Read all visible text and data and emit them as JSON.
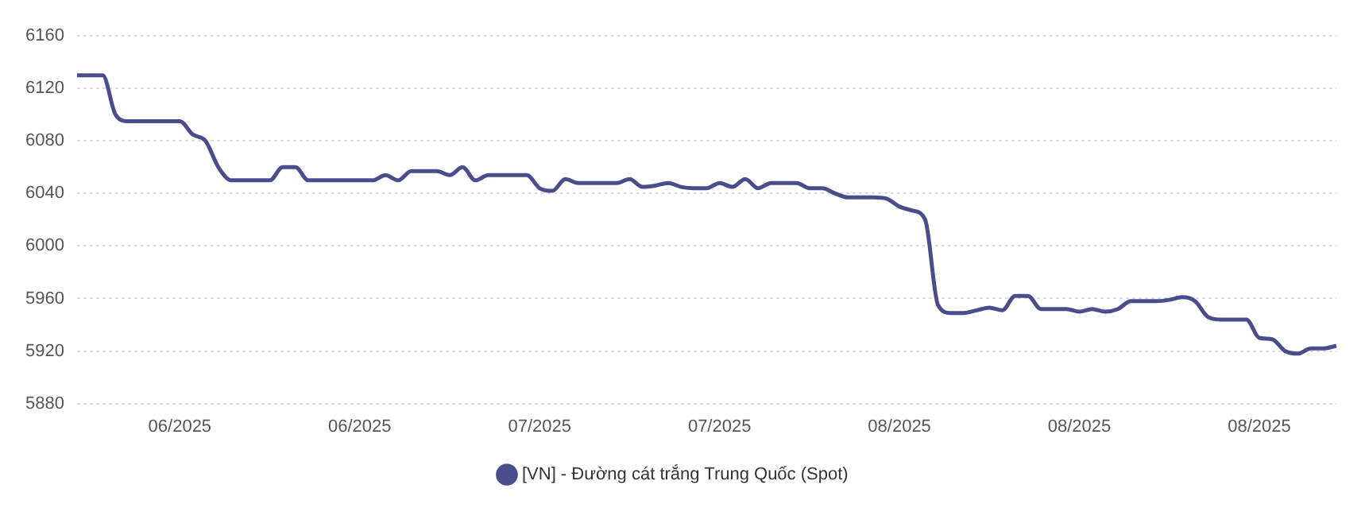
{
  "chart_data": {
    "type": "line",
    "categories": [
      null,
      null,
      null,
      null,
      null,
      null,
      null,
      null,
      "06/2025",
      null,
      null,
      null,
      null,
      null,
      null,
      null,
      null,
      null,
      null,
      null,
      null,
      null,
      "06/2025",
      null,
      null,
      null,
      null,
      null,
      null,
      null,
      null,
      null,
      null,
      null,
      null,
      null,
      "07/2025",
      null,
      null,
      null,
      null,
      null,
      null,
      null,
      null,
      null,
      null,
      null,
      null,
      null,
      "07/2025",
      null,
      null,
      null,
      null,
      null,
      null,
      null,
      null,
      null,
      null,
      null,
      null,
      null,
      "08/2025",
      null,
      null,
      null,
      null,
      null,
      null,
      null,
      null,
      null,
      null,
      null,
      null,
      null,
      "08/2025",
      null,
      null,
      null,
      null,
      null,
      null,
      null,
      null,
      null,
      null,
      null,
      null,
      null,
      "08/2025",
      null,
      null,
      null,
      null,
      null,
      null
    ],
    "series": [
      {
        "name": "[VN] - Đường cát trắng Trung Quốc (Spot)",
        "color": "#4a4d8c",
        "values": [
          6130,
          6130,
          6130,
          6100,
          6095,
          6095,
          6095,
          6095,
          6095,
          6085,
          6080,
          6060,
          6050,
          6050,
          6050,
          6050,
          6060,
          6060,
          6050,
          6050,
          6050,
          6050,
          6050,
          6050,
          6054,
          6050,
          6057,
          6057,
          6057,
          6054,
          6060,
          6050,
          6054,
          6054,
          6054,
          6054,
          6044,
          6042,
          6051,
          6048,
          6048,
          6048,
          6048,
          6051,
          6045,
          6046,
          6048,
          6045,
          6044,
          6044,
          6048,
          6045,
          6051,
          6044,
          6048,
          6048,
          6048,
          6044,
          6044,
          6040,
          6037,
          6037,
          6037,
          6036,
          6030,
          6027,
          6020,
          5955,
          5949,
          5949,
          5951,
          5953,
          5951,
          5962,
          5962,
          5952,
          5952,
          5952,
          5950,
          5952,
          5950,
          5952,
          5958,
          5958,
          5958,
          5959,
          5961,
          5958,
          5946,
          5944,
          5944,
          5944,
          5930,
          5929,
          5920,
          5918,
          5922,
          5922,
          5924
        ]
      }
    ],
    "ylim": [
      5880,
      6160
    ],
    "yticks": [
      5880,
      5920,
      5960,
      6000,
      6040,
      6080,
      6120,
      6160
    ],
    "grid": "y",
    "legend": "bottom",
    "marker": "none",
    "line_style": "solid"
  }
}
